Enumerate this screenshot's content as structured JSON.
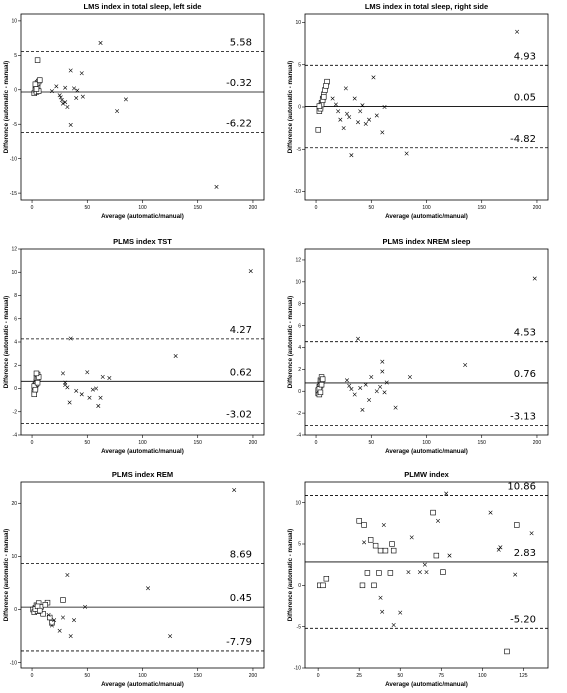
{
  "chart_data": [
    {
      "type": "scatter",
      "title": "LMS index in total sleep, left side",
      "xlabel": "Average (automatic/manual)",
      "ylabel": "Difference (automatic - manual)",
      "xlim": [
        -10,
        210
      ],
      "ylim": [
        -16,
        11
      ],
      "xticks": [
        0,
        50,
        100,
        150,
        200
      ],
      "yticks": [
        -15,
        -10,
        -5,
        0,
        5,
        10
      ],
      "ref_lines": [
        {
          "value": 5.58,
          "label": "5.58",
          "style": "dashed"
        },
        {
          "value": -0.32,
          "label": "-0.32",
          "style": "solid"
        },
        {
          "value": -6.22,
          "label": "-6.22",
          "style": "dashed"
        }
      ],
      "squares": [
        [
          2,
          -0.5
        ],
        [
          3,
          0
        ],
        [
          4,
          0.5
        ],
        [
          5,
          1
        ],
        [
          6,
          1.2
        ],
        [
          4,
          -0.3
        ],
        [
          5,
          0.3
        ],
        [
          6,
          -0.2
        ],
        [
          3,
          0.8
        ],
        [
          7,
          1.4
        ],
        [
          5,
          4.3
        ],
        [
          4,
          0.1
        ]
      ],
      "crosses": [
        [
          18,
          -0.2
        ],
        [
          22,
          0.5
        ],
        [
          25,
          -0.8
        ],
        [
          27,
          -1.5
        ],
        [
          28,
          -2
        ],
        [
          30,
          0.3
        ],
        [
          32,
          -2.5
        ],
        [
          35,
          2.8
        ],
        [
          35,
          -5.1
        ],
        [
          38,
          0.2
        ],
        [
          40,
          -1.2
        ],
        [
          45,
          2.4
        ],
        [
          46,
          -1
        ],
        [
          62,
          6.8
        ],
        [
          77,
          -3.1
        ],
        [
          85,
          -1.4
        ],
        [
          167,
          -14.1
        ],
        [
          26,
          -1.1
        ],
        [
          30,
          -1.8
        ],
        [
          41,
          -0.1
        ]
      ]
    },
    {
      "type": "scatter",
      "title": "LMS index in total sleep, right side",
      "xlabel": "Average (automatic/manual)",
      "ylabel": "Difference (automatic - manual)",
      "xlim": [
        -10,
        210
      ],
      "ylim": [
        -11,
        11
      ],
      "xticks": [
        0,
        50,
        100,
        150,
        200
      ],
      "yticks": [
        -10,
        -5,
        0,
        5,
        10
      ],
      "ref_lines": [
        {
          "value": 4.93,
          "label": "4.93",
          "style": "dashed"
        },
        {
          "value": 0.05,
          "label": "0.05",
          "style": "solid"
        },
        {
          "value": -4.82,
          "label": "-4.82",
          "style": "dashed"
        }
      ],
      "squares": [
        [
          2,
          -2.7
        ],
        [
          3,
          -0.5
        ],
        [
          4,
          0
        ],
        [
          5,
          0.5
        ],
        [
          6,
          1
        ],
        [
          7,
          1.5
        ],
        [
          8,
          2
        ],
        [
          10,
          3
        ],
        [
          4,
          -0.2
        ],
        [
          5,
          0.3
        ],
        [
          6,
          0.8
        ],
        [
          3,
          0.1
        ],
        [
          7,
          1.2
        ],
        [
          9,
          2.5
        ]
      ],
      "crosses": [
        [
          15,
          1
        ],
        [
          18,
          0.3
        ],
        [
          20,
          -0.5
        ],
        [
          22,
          -1.5
        ],
        [
          25,
          -2.5
        ],
        [
          27,
          2.2
        ],
        [
          28,
          -0.8
        ],
        [
          30,
          -1.2
        ],
        [
          32,
          -5.7
        ],
        [
          35,
          1
        ],
        [
          38,
          -1.8
        ],
        [
          40,
          -0.5
        ],
        [
          42,
          0.2
        ],
        [
          45,
          -2
        ],
        [
          52,
          3.5
        ],
        [
          55,
          -1
        ],
        [
          60,
          -3
        ],
        [
          62,
          0
        ],
        [
          82,
          -5.5
        ],
        [
          182,
          8.9
        ],
        [
          48,
          -1.5
        ]
      ]
    },
    {
      "type": "scatter",
      "title": "PLMS index TST",
      "xlabel": "Average (automatic/manual)",
      "ylabel": "Difference (automatic - manual)",
      "xlim": [
        -10,
        210
      ],
      "ylim": [
        -4,
        12
      ],
      "xticks": [
        0,
        50,
        100,
        150,
        200
      ],
      "yticks": [
        -4,
        -2,
        0,
        2,
        4,
        6,
        8,
        10,
        12
      ],
      "ref_lines": [
        {
          "value": 4.27,
          "label": "4.27",
          "style": "dashed"
        },
        {
          "value": 0.62,
          "label": "0.62",
          "style": "solid"
        },
        {
          "value": -3.02,
          "label": "-3.02",
          "style": "dashed"
        }
      ],
      "squares": [
        [
          2,
          -0.3
        ],
        [
          3,
          0
        ],
        [
          3,
          0.3
        ],
        [
          4,
          0.6
        ],
        [
          4,
          0.9
        ],
        [
          5,
          1.2
        ],
        [
          2,
          -0.5
        ],
        [
          3,
          0.1
        ],
        [
          4,
          0.4
        ],
        [
          5,
          0.8
        ],
        [
          6,
          1
        ],
        [
          2,
          0.2
        ],
        [
          3,
          -0.1
        ],
        [
          4,
          1.3
        ],
        [
          5,
          0.5
        ]
      ],
      "crosses": [
        [
          28,
          1.3
        ],
        [
          30,
          0.5
        ],
        [
          32,
          0.1
        ],
        [
          34,
          -1.2
        ],
        [
          35,
          4.3
        ],
        [
          40,
          -0.2
        ],
        [
          45,
          -0.5
        ],
        [
          50,
          1.4
        ],
        [
          52,
          -0.8
        ],
        [
          55,
          -0.1
        ],
        [
          58,
          0
        ],
        [
          60,
          -1.5
        ],
        [
          62,
          -0.8
        ],
        [
          64,
          1
        ],
        [
          70,
          0.9
        ],
        [
          130,
          2.8
        ],
        [
          198,
          10.1
        ],
        [
          30,
          0.3
        ]
      ]
    },
    {
      "type": "scatter",
      "title": "PLMS index NREM sleep",
      "xlabel": "Average (automatic/manual)",
      "ylabel": "Difference (automatic - manual)",
      "xlim": [
        -10,
        210
      ],
      "ylim": [
        -4,
        13
      ],
      "xticks": [
        0,
        50,
        100,
        150,
        200
      ],
      "yticks": [
        -4,
        -2,
        0,
        2,
        4,
        6,
        8,
        10,
        12
      ],
      "ref_lines": [
        {
          "value": 4.53,
          "label": "4.53",
          "style": "dashed"
        },
        {
          "value": 0.76,
          "label": "0.76",
          "style": "solid"
        },
        {
          "value": -3.13,
          "label": "-3.13",
          "style": "dashed"
        }
      ],
      "squares": [
        [
          2,
          -0.2
        ],
        [
          3,
          0
        ],
        [
          3,
          0.4
        ],
        [
          4,
          0.7
        ],
        [
          4,
          1
        ],
        [
          5,
          1.3
        ],
        [
          2,
          0.1
        ],
        [
          3,
          -0.3
        ],
        [
          4,
          0.5
        ],
        [
          5,
          0.9
        ],
        [
          6,
          1.1
        ],
        [
          3,
          0.2
        ],
        [
          4,
          -0.1
        ],
        [
          5,
          0.6
        ]
      ],
      "crosses": [
        [
          28,
          1
        ],
        [
          30,
          0.5
        ],
        [
          32,
          0.2
        ],
        [
          35,
          -0.3
        ],
        [
          38,
          4.8
        ],
        [
          40,
          0.3
        ],
        [
          42,
          -1.7
        ],
        [
          45,
          0.6
        ],
        [
          48,
          -0.8
        ],
        [
          50,
          1.3
        ],
        [
          55,
          0
        ],
        [
          58,
          0.4
        ],
        [
          60,
          2.7
        ],
        [
          62,
          -0.1
        ],
        [
          64,
          0.8
        ],
        [
          72,
          -1.5
        ],
        [
          85,
          1.3
        ],
        [
          135,
          2.4
        ],
        [
          198,
          10.3
        ],
        [
          60,
          1.8
        ]
      ]
    },
    {
      "type": "scatter",
      "title": "PLMS index REM",
      "xlabel": "Average (automatic/manual)",
      "ylabel": "Difference (automatic - manual)",
      "xlim": [
        -10,
        210
      ],
      "ylim": [
        -11,
        24
      ],
      "xticks": [
        0,
        50,
        100,
        150,
        200
      ],
      "yticks": [
        -10,
        0,
        10,
        20
      ],
      "ref_lines": [
        {
          "value": 8.69,
          "label": "8.69",
          "style": "dashed"
        },
        {
          "value": 0.45,
          "label": "0.45",
          "style": "solid"
        },
        {
          "value": -7.79,
          "label": "-7.79",
          "style": "dashed"
        }
      ],
      "squares": [
        [
          1,
          0
        ],
        [
          2,
          -0.5
        ],
        [
          3,
          0.3
        ],
        [
          4,
          0.8
        ],
        [
          5,
          -0.3
        ],
        [
          6,
          1.2
        ],
        [
          8,
          0.5
        ],
        [
          10,
          -0.8
        ],
        [
          14,
          1.3
        ],
        [
          16,
          -1.5
        ],
        [
          18,
          -2.5
        ],
        [
          28,
          1.8
        ],
        [
          3,
          0.1
        ],
        [
          5,
          0.6
        ],
        [
          7,
          -0.2
        ],
        [
          12,
          0.9
        ]
      ],
      "crosses": [
        [
          15,
          -1
        ],
        [
          18,
          -3
        ],
        [
          20,
          -2
        ],
        [
          25,
          -4
        ],
        [
          28,
          -1.5
        ],
        [
          32,
          6.5
        ],
        [
          35,
          -5
        ],
        [
          38,
          -2
        ],
        [
          48,
          0.5
        ],
        [
          105,
          4
        ],
        [
          125,
          -5
        ],
        [
          183,
          22.5
        ]
      ]
    },
    {
      "type": "scatter",
      "title": "PLMW index",
      "xlabel": "Average (automatic/manual)",
      "ylabel": "Difference (automatic - manual)",
      "xlim": [
        -8,
        140
      ],
      "ylim": [
        -10,
        12.5
      ],
      "xticks": [
        0,
        25,
        50,
        75,
        100,
        125
      ],
      "yticks": [
        -10,
        -5,
        0,
        5,
        10
      ],
      "ref_lines": [
        {
          "value": 10.86,
          "label": "10.86",
          "style": "dashed"
        },
        {
          "value": 2.83,
          "label": "2.83",
          "style": "solid"
        },
        {
          "value": -5.2,
          "label": "-5.20",
          "style": "dashed"
        }
      ],
      "squares": [
        [
          1,
          0
        ],
        [
          3,
          0
        ],
        [
          5,
          0.8
        ],
        [
          25,
          7.8
        ],
        [
          27,
          0
        ],
        [
          28,
          7.3
        ],
        [
          30,
          1.5
        ],
        [
          32,
          5.5
        ],
        [
          34,
          0
        ],
        [
          35,
          4.8
        ],
        [
          37,
          1.5
        ],
        [
          38,
          4.2
        ],
        [
          41,
          4.2
        ],
        [
          44,
          1.5
        ],
        [
          45,
          5
        ],
        [
          46,
          4.2
        ],
        [
          70,
          8.8
        ],
        [
          72,
          3.6
        ],
        [
          76,
          1.6
        ],
        [
          115,
          -8
        ],
        [
          121,
          7.3
        ]
      ],
      "crosses": [
        [
          28,
          5.2
        ],
        [
          38,
          -1.5
        ],
        [
          39,
          -3.2
        ],
        [
          40,
          7.3
        ],
        [
          46,
          -4.8
        ],
        [
          50,
          -3.3
        ],
        [
          55,
          1.6
        ],
        [
          57,
          5.8
        ],
        [
          62,
          1.6
        ],
        [
          65,
          2.5
        ],
        [
          66,
          1.6
        ],
        [
          73,
          7.8
        ],
        [
          78,
          11.1
        ],
        [
          80,
          3.6
        ],
        [
          105,
          8.8
        ],
        [
          110,
          4.3
        ],
        [
          111,
          4.6
        ],
        [
          120,
          1.3
        ],
        [
          130,
          6.3
        ]
      ]
    }
  ]
}
